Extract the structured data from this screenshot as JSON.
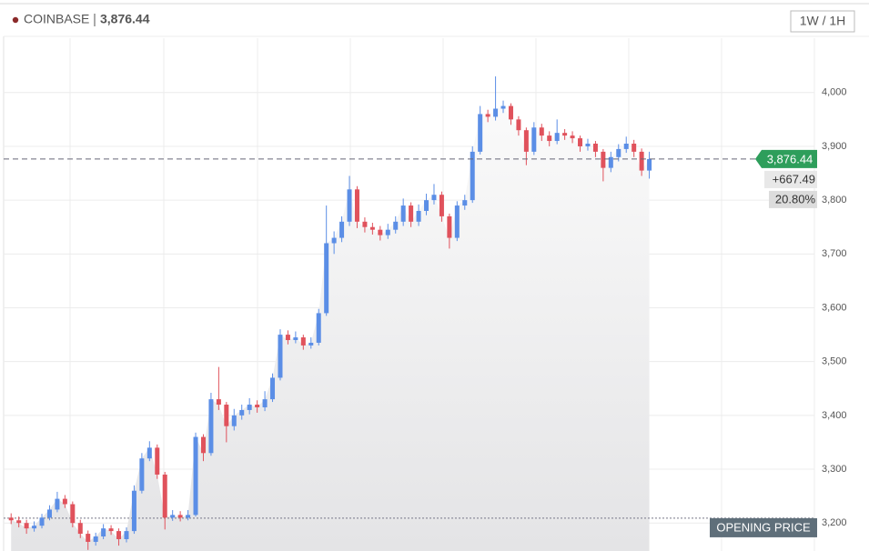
{
  "chart_data": {
    "type": "candlestick",
    "title": "COINBASE",
    "interval": "1W / 1H",
    "last_price": {
      "value": 3876.44,
      "label": "3,876.44"
    },
    "change": {
      "value": 667.49,
      "label": "+667.49"
    },
    "change_percent": {
      "value": 20.8,
      "label": "20.80%"
    },
    "opening_price": {
      "value": 3208.95,
      "label": "OPENING PRICE"
    },
    "up_color": "#5b8ee6",
    "down_color": "#e0525c",
    "grid": true,
    "ylim": [
      3148,
      4101
    ],
    "yticks": [
      {
        "value": 3200,
        "label": "3,200"
      },
      {
        "value": 3300,
        "label": "3,300"
      },
      {
        "value": 3400,
        "label": "3,400"
      },
      {
        "value": 3500,
        "label": "3,500"
      },
      {
        "value": 3600,
        "label": "3,600"
      },
      {
        "value": 3700,
        "label": "3,700"
      },
      {
        "value": 3800,
        "label": "3,800"
      },
      {
        "value": 3900,
        "label": "3,900"
      },
      {
        "value": 4000,
        "label": "4,000"
      }
    ],
    "open": [
      3210,
      3205,
      3200,
      3190,
      3195,
      3210,
      3225,
      3245,
      3235,
      3200,
      3180,
      3165,
      3175,
      3190,
      3185,
      3170,
      3185,
      3260,
      3320,
      3340,
      3290,
      3210,
      3215,
      3210,
      3215,
      3360,
      3330,
      3430,
      3420,
      3380,
      3400,
      3410,
      3420,
      3415,
      3430,
      3470,
      3550,
      3540,
      3545,
      3530,
      3535,
      3590,
      3720,
      3730,
      3760,
      3820,
      3760,
      3750,
      3745,
      3735,
      3745,
      3760,
      3790,
      3760,
      3780,
      3800,
      3810,
      3770,
      3730,
      3790,
      3800,
      3890,
      3960,
      3955,
      3970,
      3975,
      3950,
      3930,
      3890,
      3935,
      3920,
      3910,
      3925,
      3920,
      3915,
      3900,
      3905,
      3890,
      3860,
      3880,
      3895,
      3905,
      3890,
      3855
    ],
    "high": [
      3218,
      3212,
      3206,
      3203,
      3217,
      3233,
      3258,
      3252,
      3240,
      3206,
      3186,
      3182,
      3198,
      3196,
      3190,
      3192,
      3270,
      3330,
      3352,
      3346,
      3295,
      3224,
      3222,
      3224,
      3368,
      3365,
      3442,
      3490,
      3425,
      3412,
      3420,
      3432,
      3428,
      3445,
      3478,
      3560,
      3558,
      3556,
      3550,
      3545,
      3598,
      3790,
      3742,
      3770,
      3845,
      3826,
      3768,
      3758,
      3752,
      3756,
      3770,
      3803,
      3796,
      3792,
      3812,
      3830,
      3816,
      3775,
      3798,
      3810,
      3900,
      3975,
      3968,
      4030,
      3985,
      3980,
      3956,
      3935,
      3945,
      3942,
      3928,
      3950,
      3932,
      3928,
      3920,
      3914,
      3910,
      3895,
      3890,
      3904,
      3918,
      3912,
      3896,
      3890
    ],
    "low": [
      3198,
      3192,
      3180,
      3184,
      3190,
      3205,
      3220,
      3228,
      3192,
      3172,
      3150,
      3158,
      3170,
      3178,
      3158,
      3164,
      3180,
      3255,
      3315,
      3282,
      3188,
      3204,
      3203,
      3205,
      3212,
      3315,
      3325,
      3410,
      3350,
      3372,
      3392,
      3402,
      3405,
      3408,
      3425,
      3465,
      3532,
      3534,
      3522,
      3524,
      3530,
      3585,
      3700,
      3722,
      3752,
      3748,
      3740,
      3736,
      3725,
      3728,
      3738,
      3752,
      3750,
      3752,
      3772,
      3792,
      3760,
      3710,
      3724,
      3782,
      3795,
      3885,
      3945,
      3948,
      3962,
      3940,
      3920,
      3865,
      3884,
      3910,
      3900,
      3904,
      3912,
      3906,
      3890,
      3892,
      3880,
      3835,
      3852,
      3872,
      3888,
      3880,
      3845,
      3840
    ],
    "close": [
      3205,
      3200,
      3190,
      3195,
      3210,
      3225,
      3245,
      3235,
      3200,
      3180,
      3165,
      3175,
      3190,
      3185,
      3170,
      3185,
      3260,
      3320,
      3340,
      3290,
      3210,
      3215,
      3210,
      3215,
      3360,
      3330,
      3430,
      3420,
      3380,
      3400,
      3410,
      3420,
      3415,
      3430,
      3470,
      3550,
      3540,
      3545,
      3530,
      3535,
      3590,
      3720,
      3730,
      3760,
      3820,
      3760,
      3750,
      3745,
      3735,
      3745,
      3760,
      3790,
      3760,
      3780,
      3800,
      3810,
      3770,
      3730,
      3790,
      3800,
      3890,
      3960,
      3955,
      3970,
      3975,
      3950,
      3930,
      3890,
      3935,
      3920,
      3910,
      3925,
      3920,
      3915,
      3900,
      3905,
      3890,
      3860,
      3880,
      3895,
      3905,
      3890,
      3855,
      3876.44
    ]
  }
}
